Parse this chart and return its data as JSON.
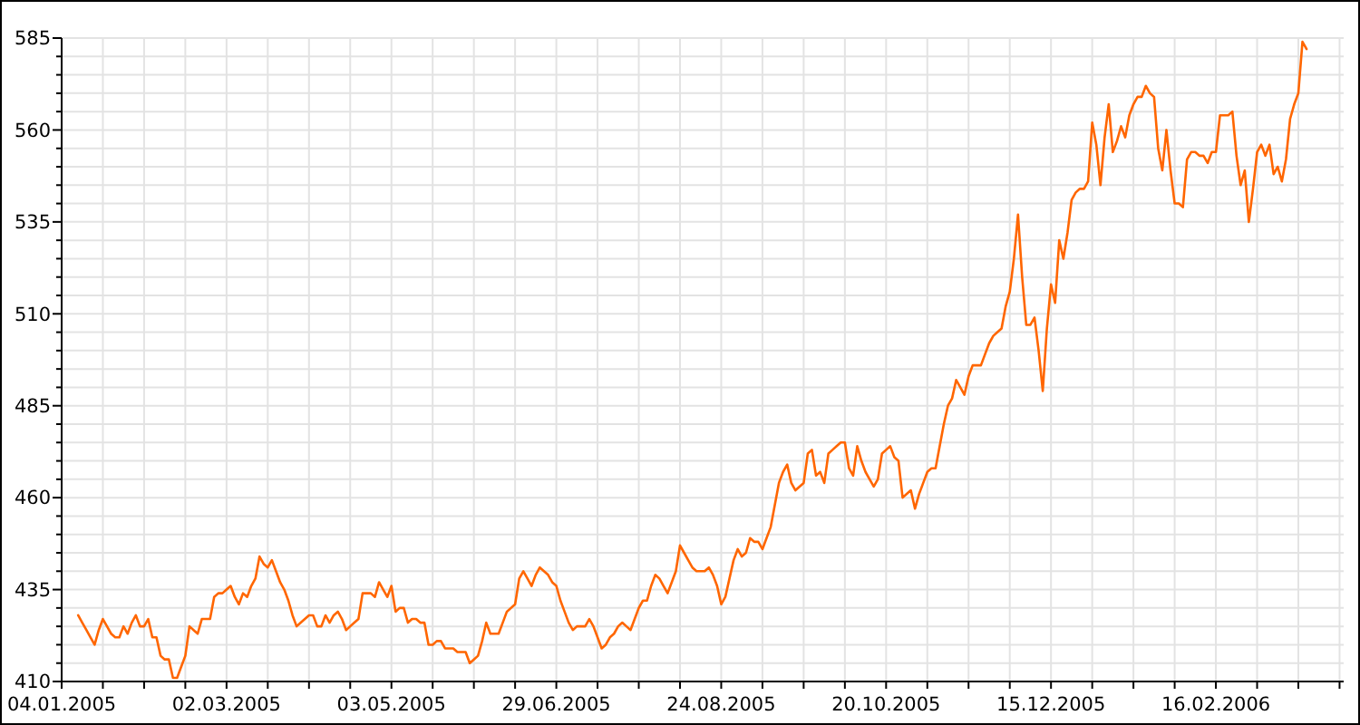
{
  "chart_data": {
    "type": "line",
    "grid": true,
    "ylim": [
      410,
      585
    ],
    "yticks": [
      410,
      {
        "value": 415,
        "label": null
      },
      {
        "value": 420,
        "label": null
      },
      {
        "value": 425,
        "label": null
      },
      {
        "value": 430,
        "label": null
      },
      435,
      {
        "value": 440,
        "label": null
      },
      {
        "value": 445,
        "label": null
      },
      {
        "value": 450,
        "label": null
      },
      {
        "value": 455,
        "label": null
      },
      460,
      {
        "value": 465,
        "label": null
      },
      {
        "value": 470,
        "label": null
      },
      {
        "value": 475,
        "label": null
      },
      {
        "value": 480,
        "label": null
      },
      485,
      {
        "value": 490,
        "label": null
      },
      {
        "value": 495,
        "label": null
      },
      {
        "value": 500,
        "label": null
      },
      {
        "value": 505,
        "label": null
      },
      510,
      {
        "value": 515,
        "label": null
      },
      {
        "value": 520,
        "label": null
      },
      {
        "value": 525,
        "label": null
      },
      {
        "value": 530,
        "label": null
      },
      535,
      {
        "value": 540,
        "label": null
      },
      {
        "value": 545,
        "label": null
      },
      {
        "value": 550,
        "label": null
      },
      {
        "value": 555,
        "label": null
      },
      560,
      {
        "value": 565,
        "label": null
      },
      {
        "value": 570,
        "label": null
      },
      {
        "value": 575,
        "label": null
      },
      {
        "value": 580,
        "label": null
      },
      585
    ],
    "categories": [
      "04.01.2005",
      null,
      null,
      null,
      null,
      null,
      null,
      null,
      null,
      null,
      null,
      null,
      null,
      null,
      null,
      null,
      null,
      null,
      null,
      null,
      null,
      null,
      null,
      null,
      null,
      null,
      null,
      null,
      null,
      null,
      null,
      null,
      null,
      null,
      null,
      null,
      null,
      null,
      null,
      null,
      "02.03.2005",
      null,
      null,
      null,
      null,
      null,
      null,
      null,
      null,
      null,
      null,
      null,
      null,
      null,
      null,
      null,
      null,
      null,
      null,
      null,
      null,
      null,
      null,
      null,
      null,
      null,
      null,
      null,
      null,
      null,
      null,
      null,
      null,
      null,
      null,
      null,
      null,
      null,
      null,
      null,
      "03.05.2005",
      null,
      null,
      null,
      null,
      null,
      null,
      null,
      null,
      null,
      null,
      null,
      null,
      null,
      null,
      null,
      null,
      null,
      null,
      null,
      null,
      null,
      null,
      null,
      null,
      null,
      null,
      null,
      null,
      null,
      null,
      null,
      null,
      null,
      null,
      null,
      null,
      null,
      null,
      null,
      "29.06.2005",
      null,
      null,
      null,
      null,
      null,
      null,
      null,
      null,
      null,
      null,
      null,
      null,
      null,
      null,
      null,
      null,
      null,
      null,
      null,
      null,
      null,
      null,
      null,
      null,
      null,
      null,
      null,
      null,
      null,
      null,
      null,
      null,
      null,
      null,
      null,
      null,
      null,
      null,
      null,
      "24.08.2005",
      null,
      null,
      null,
      null,
      null,
      null,
      null,
      null,
      null,
      null,
      null,
      null,
      null,
      null,
      null,
      null,
      null,
      null,
      null,
      null,
      null,
      null,
      null,
      null,
      null,
      null,
      null,
      null,
      null,
      null,
      null,
      null,
      null,
      null,
      null,
      null,
      null,
      null,
      null,
      "20.10.2005",
      null,
      null,
      null,
      null,
      null,
      null,
      null,
      null,
      null,
      null,
      null,
      null,
      null,
      null,
      null,
      null,
      null,
      null,
      null,
      null,
      null,
      null,
      null,
      null,
      null,
      null,
      null,
      null,
      null,
      null,
      null,
      null,
      null,
      null,
      null,
      null,
      null,
      null,
      null,
      "15.12.2005",
      null,
      null,
      null,
      null,
      null,
      null,
      null,
      null,
      null,
      null,
      null,
      null,
      null,
      null,
      null,
      null,
      null,
      null,
      null,
      null,
      null,
      null,
      null,
      null,
      null,
      null,
      null,
      null,
      null,
      null,
      null,
      null,
      null,
      null,
      null,
      null,
      null,
      null,
      null,
      "16.02.2006",
      null,
      null,
      null,
      null,
      null,
      null,
      null,
      null,
      null,
      null,
      null,
      null,
      null,
      null,
      null,
      null,
      null,
      null,
      null,
      null,
      null,
      null,
      null,
      null,
      null,
      null,
      null,
      null,
      null,
      null,
      null
    ],
    "series": [
      {
        "color": "#ff6600",
        "values": [
          null,
          null,
          null,
          null,
          428,
          426,
          424,
          422,
          420,
          424,
          427,
          425,
          423,
          422,
          422,
          425,
          423,
          426,
          428,
          425,
          425,
          427,
          422,
          422,
          417,
          416,
          416,
          411,
          411,
          414,
          417,
          425,
          424,
          423,
          427,
          427,
          427,
          433,
          434,
          434,
          435,
          436,
          433,
          431,
          434,
          433,
          436,
          438,
          444,
          442,
          441,
          443,
          440,
          437,
          435,
          432,
          428,
          425,
          426,
          427,
          428,
          428,
          425,
          425,
          428,
          426,
          428,
          429,
          427,
          424,
          425,
          426,
          427,
          434,
          434,
          434,
          433,
          437,
          435,
          433,
          436,
          429,
          430,
          430,
          426,
          427,
          427,
          426,
          426,
          420,
          420,
          421,
          421,
          419,
          419,
          419,
          418,
          418,
          418,
          415,
          416,
          417,
          421,
          426,
          423,
          423,
          423,
          426,
          429,
          430,
          431,
          438,
          440,
          438,
          436,
          439,
          441,
          440,
          439,
          437,
          436,
          432,
          429,
          426,
          424,
          425,
          425,
          425,
          427,
          425,
          422,
          419,
          420,
          422,
          423,
          425,
          426,
          425,
          424,
          427,
          430,
          432,
          432,
          436,
          439,
          438,
          436,
          434,
          437,
          440,
          447,
          445,
          443,
          441,
          440,
          440,
          440,
          441,
          439,
          436,
          431,
          433,
          438,
          443,
          446,
          444,
          445,
          449,
          448,
          448,
          446,
          449,
          452,
          458,
          464,
          467,
          469,
          464,
          462,
          463,
          464,
          472,
          473,
          466,
          467,
          464,
          472,
          473,
          474,
          475,
          475,
          468,
          466,
          474,
          470,
          467,
          465,
          463,
          465,
          472,
          473,
          474,
          471,
          470,
          460,
          461,
          462,
          457,
          461,
          464,
          467,
          468,
          468,
          474,
          480,
          485,
          487,
          492,
          490,
          488,
          493,
          496,
          496,
          496,
          499,
          502,
          504,
          505,
          506,
          512,
          516,
          525,
          537,
          520,
          507,
          507,
          509,
          500,
          489,
          506,
          518,
          513,
          530,
          525,
          532,
          541,
          543,
          544,
          544,
          546,
          562,
          556,
          545,
          558,
          567,
          554,
          557,
          561,
          558,
          564,
          567,
          569,
          569,
          572,
          570,
          569,
          555,
          549,
          560,
          549,
          540,
          540,
          539,
          552,
          554,
          554,
          553,
          553,
          551,
          554,
          554,
          564,
          564,
          564,
          565,
          553,
          545,
          549,
          535,
          544,
          554,
          556,
          553,
          556,
          548,
          550,
          546,
          552,
          563,
          567,
          570,
          584,
          582,
          null,
          null,
          null,
          null,
          null,
          null,
          null,
          null,
          null
        ]
      }
    ]
  }
}
